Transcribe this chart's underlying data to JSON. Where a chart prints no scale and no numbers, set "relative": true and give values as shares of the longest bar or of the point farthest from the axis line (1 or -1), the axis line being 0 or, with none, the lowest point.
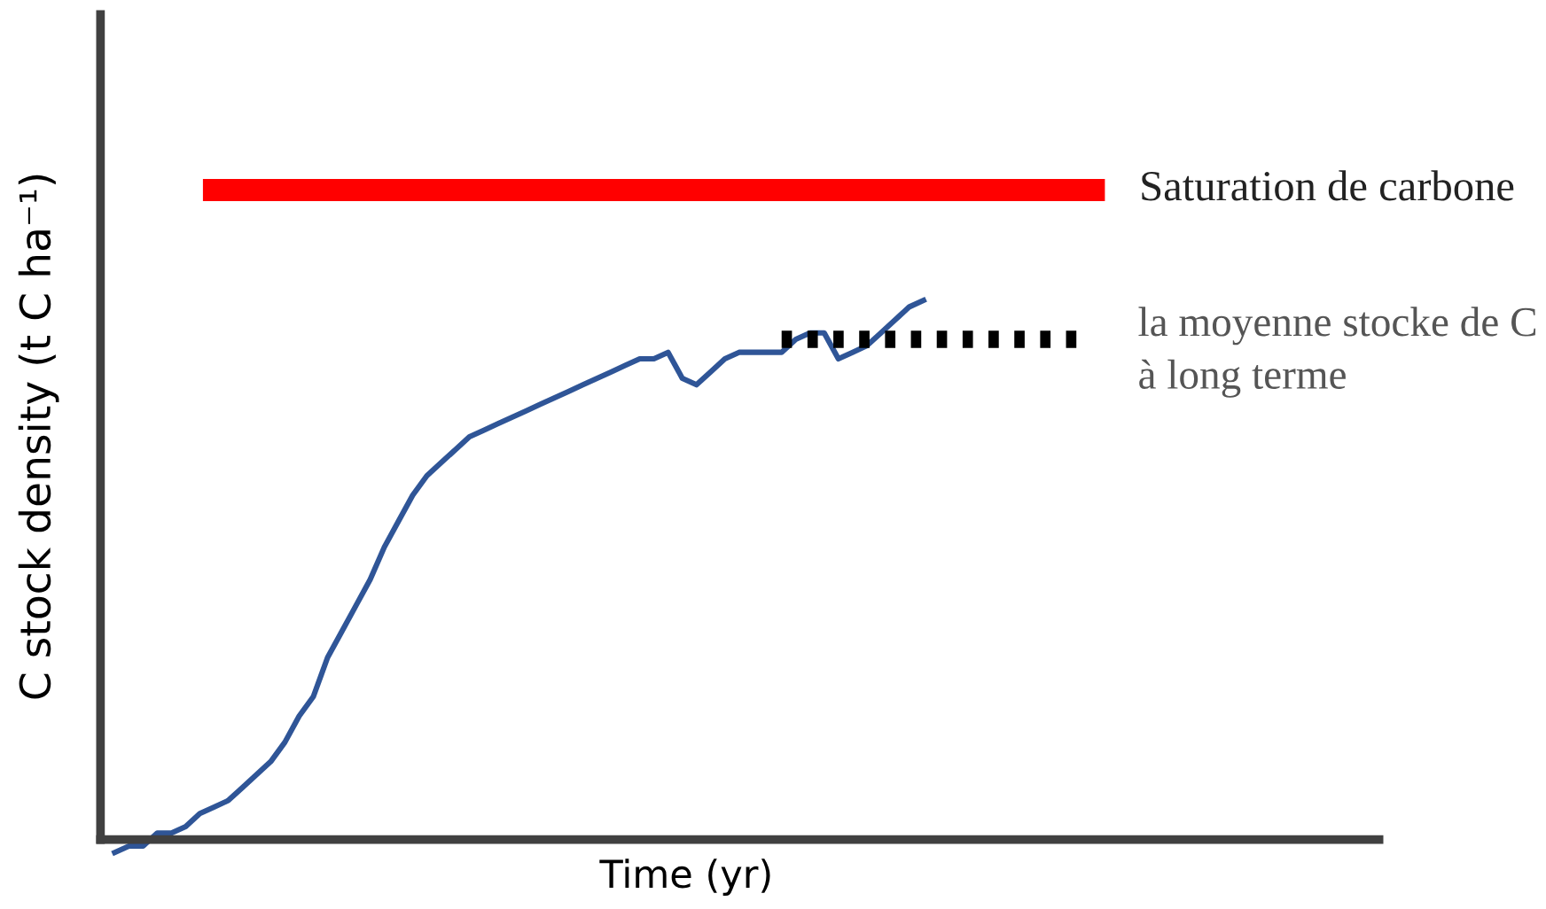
{
  "chart_data": {
    "type": "line",
    "relative": true,
    "xlabel": "Time (yr)",
    "ylabel": "C stock density (t C ha⁻¹)",
    "grid": false,
    "legend": false,
    "marker": "none",
    "categories": [
      null,
      null,
      null,
      null,
      null,
      null,
      null,
      null,
      null,
      null,
      null,
      null,
      null,
      null,
      null,
      null,
      null,
      null,
      null,
      null,
      null,
      null,
      null,
      null,
      null,
      null,
      null,
      null,
      null,
      null,
      null,
      null,
      null,
      null,
      null,
      null,
      null,
      null,
      null,
      null,
      null,
      null,
      null,
      null,
      null,
      null,
      null,
      null,
      null,
      null,
      null,
      null,
      null,
      null,
      null,
      null,
      null,
      null,
      null,
      null,
      null,
      null,
      null,
      null,
      null,
      null,
      null,
      null,
      null,
      null,
      null,
      null,
      null,
      null,
      null,
      null,
      null,
      null,
      null,
      null,
      null,
      null,
      null,
      null,
      null,
      null,
      null,
      null,
      null,
      null
    ],
    "series": [
      {
        "color": "#2f5597",
        "line_style": "solid",
        "values": [
          -0.02,
          -0.01,
          -0.01,
          0.01,
          0.01,
          0.02,
          0.04,
          0.05,
          0.06,
          0.08,
          0.1,
          0.12,
          0.15,
          0.19,
          0.22,
          0.28,
          0.32,
          0.36,
          0.4,
          0.45,
          0.49,
          0.53,
          0.56,
          0.58,
          0.6,
          0.62,
          0.63,
          0.64,
          0.65,
          0.66,
          0.67,
          0.68,
          0.69,
          0.7,
          0.71,
          0.72,
          0.73,
          0.74,
          0.74,
          0.75,
          0.71,
          0.7,
          0.72,
          0.74,
          0.75,
          0.75,
          0.75,
          0.75,
          0.77,
          0.78,
          0.78,
          0.74,
          0.75,
          0.76,
          0.78,
          0.8,
          0.82,
          0.83,
          null,
          null,
          null,
          null,
          null,
          null,
          null,
          null,
          null,
          null,
          null,
          null,
          null,
          null,
          null,
          null,
          null,
          null,
          null,
          null,
          null,
          null,
          null,
          null,
          null,
          null,
          null,
          null,
          null,
          null,
          null,
          null
        ]
      },
      {
        "name": "Saturation de carbone",
        "color": "#ff0000",
        "line_style": "solid",
        "values": [
          null,
          null,
          null,
          null,
          null,
          null,
          null,
          1.0,
          1.0,
          1.0,
          1.0,
          1.0,
          1.0,
          1.0,
          1.0,
          1.0,
          1.0,
          1.0,
          1.0,
          1.0,
          1.0,
          1.0,
          1.0,
          1.0,
          1.0,
          1.0,
          1.0,
          1.0,
          1.0,
          1.0,
          1.0,
          1.0,
          1.0,
          1.0,
          1.0,
          1.0,
          1.0,
          1.0,
          1.0,
          1.0,
          1.0,
          1.0,
          1.0,
          1.0,
          1.0,
          1.0,
          1.0,
          1.0,
          1.0,
          1.0,
          1.0,
          1.0,
          1.0,
          1.0,
          1.0,
          1.0,
          1.0,
          1.0,
          1.0,
          1.0,
          1.0,
          1.0,
          1.0,
          1.0,
          1.0,
          1.0,
          1.0,
          1.0,
          1.0,
          1.0,
          null,
          null,
          null,
          null,
          null,
          null,
          null,
          null,
          null,
          null,
          null,
          null,
          null,
          null,
          null,
          null,
          null,
          null,
          null,
          null
        ]
      },
      {
        "name": "la moyenne stocke de C à long terme",
        "color": "#000000",
        "line_style": "dotted",
        "values": [
          null,
          null,
          null,
          null,
          null,
          null,
          null,
          null,
          null,
          null,
          null,
          null,
          null,
          null,
          null,
          null,
          null,
          null,
          null,
          null,
          null,
          null,
          null,
          null,
          null,
          null,
          null,
          null,
          null,
          null,
          null,
          null,
          null,
          null,
          null,
          null,
          null,
          null,
          null,
          null,
          null,
          null,
          null,
          null,
          null,
          null,
          null,
          0.77,
          0.77,
          0.77,
          0.77,
          0.77,
          0.77,
          0.77,
          0.77,
          0.77,
          0.77,
          0.77,
          0.77,
          0.77,
          0.77,
          0.77,
          0.77,
          0.77,
          0.77,
          0.77,
          0.77,
          0.77,
          0.77,
          null,
          null,
          null,
          null,
          null,
          null,
          null,
          null,
          null,
          null,
          null,
          null,
          null,
          null,
          null,
          null,
          null,
          null,
          null,
          null,
          null
        ]
      }
    ]
  }
}
